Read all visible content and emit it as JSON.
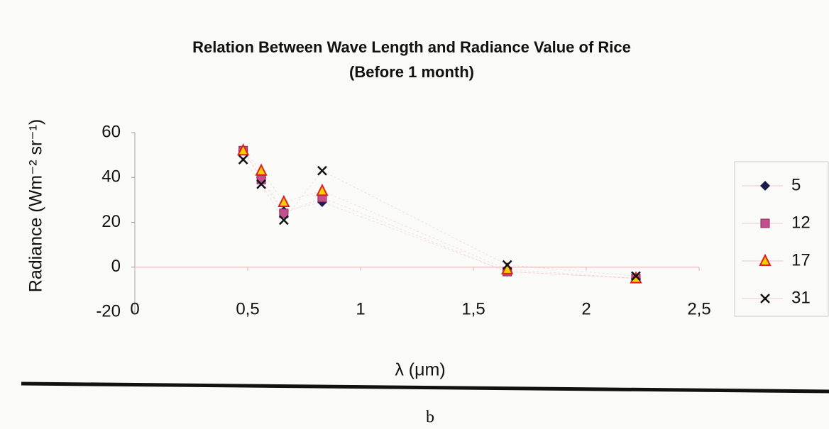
{
  "chart_data": {
    "type": "scatter",
    "title": "Relation Between Wave Length and Radiance Value of Rice",
    "subtitle": "(Before 1 month)",
    "x_label": "λ (μm)",
    "y_label": "Radiance (Wm⁻² sr⁻¹)",
    "caption": "b",
    "x": [
      0.48,
      0.56,
      0.66,
      0.83,
      1.65,
      2.22
    ],
    "series": [
      {
        "name": "5",
        "color": "#1c1c4c",
        "marker": "diamond",
        "values": [
          52,
          40,
          25,
          29,
          -2,
          -5
        ]
      },
      {
        "name": "12",
        "color": "#c2508c",
        "marker": "square",
        "values": [
          52,
          39,
          24,
          31,
          -2,
          -5
        ]
      },
      {
        "name": "17",
        "color": "#f2d000",
        "marker": "triangle",
        "values": [
          52,
          43,
          29,
          34,
          -1,
          -5
        ]
      },
      {
        "name": "31",
        "color": "#111111",
        "marker": "x",
        "values": [
          48,
          37,
          21,
          43,
          1,
          -4
        ]
      }
    ],
    "xlim": [
      0,
      2.5
    ],
    "xticks": [
      0,
      {
        "value": 0.5,
        "label": "0,5"
      },
      1,
      {
        "value": 1.5,
        "label": "1,5"
      },
      2,
      {
        "value": 2.5,
        "label": "2,5"
      }
    ],
    "ylim": [
      -20,
      60
    ],
    "yticks": [
      -20,
      0,
      20,
      40,
      60
    ],
    "legend": "right"
  }
}
